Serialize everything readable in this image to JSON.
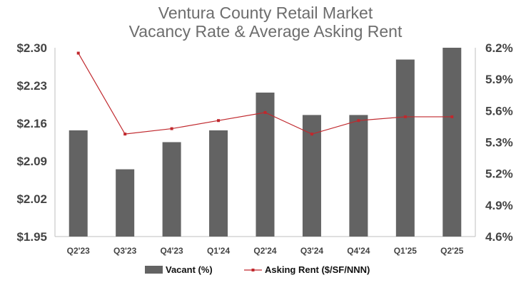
{
  "chart_data": {
    "type": "bar-line-combo",
    "title_lines": [
      "Ventura County Retail Market",
      "Vacancy Rate & Average Asking Rent"
    ],
    "categories": [
      "Q2'23",
      "Q3'23",
      "Q4'23",
      "Q1'24",
      "Q2'24",
      "Q3'24",
      "Q4'24",
      "Q1'25",
      "Q2'25"
    ],
    "left_axis": {
      "ticks": [
        "$2.30",
        "$2.23",
        "$2.16",
        "$2.09",
        "$2.02",
        "$1.95"
      ],
      "range": [
        1.95,
        2.3
      ]
    },
    "right_axis": {
      "ticks": [
        "6.2%",
        "5.9%",
        "5.6%",
        "5.3%",
        "5.2%",
        "4.9%",
        "4.6%"
      ],
      "range": [
        4.6,
        6.2
      ]
    },
    "series": [
      {
        "name": "Vacant (%)",
        "type": "bar",
        "axis": "right",
        "color": "#636363",
        "values": [
          5.5,
          5.17,
          5.4,
          5.5,
          5.82,
          5.63,
          5.63,
          6.1,
          6.2
        ]
      },
      {
        "name": "Asking Rent ($/SF/NNN)",
        "type": "line",
        "axis": "left",
        "color": "#c0282d",
        "values": [
          2.29,
          2.14,
          2.15,
          2.165,
          2.18,
          2.14,
          2.165,
          2.172,
          2.172
        ]
      }
    ],
    "legend": {
      "position": "bottom",
      "items": [
        "Vacant (%)",
        "Asking Rent ($/SF/NNN)"
      ]
    },
    "grid": false
  }
}
